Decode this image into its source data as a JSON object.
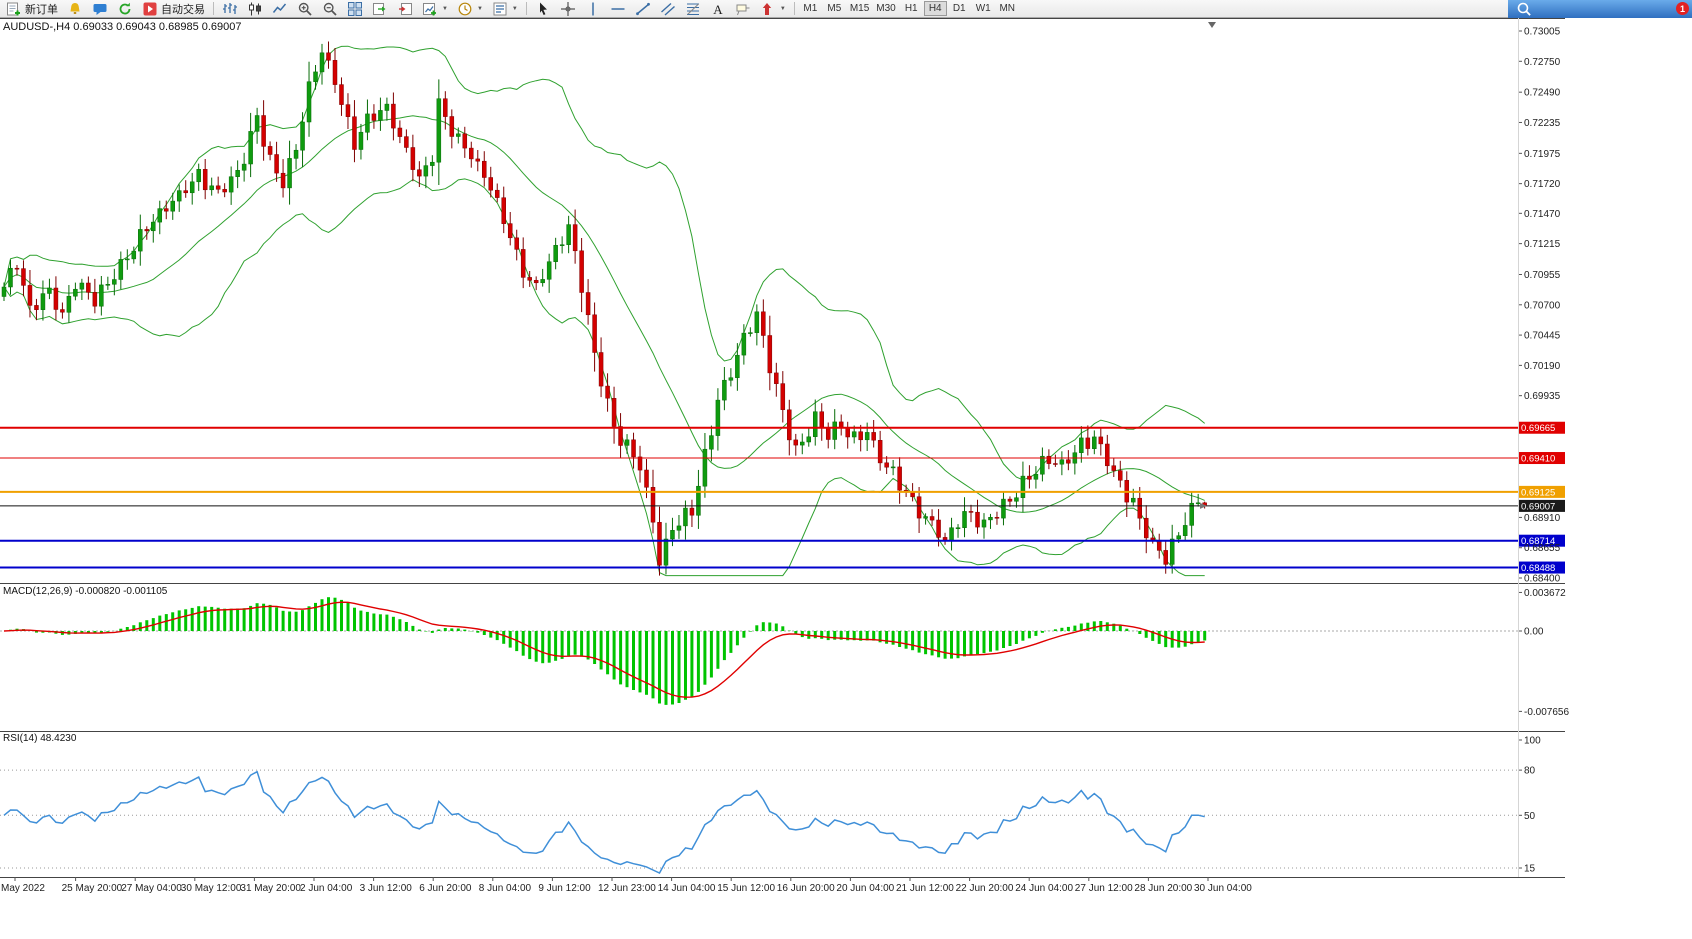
{
  "toolbar": {
    "new_order_label": "新订单",
    "auto_trading_label": "自动交易",
    "left_icons": [
      {
        "name": "bell-icon"
      },
      {
        "name": "chat-icon"
      },
      {
        "name": "refresh-icon"
      }
    ],
    "chart_icons": [
      {
        "name": "bars-chart-icon"
      },
      {
        "name": "candles-chart-icon"
      },
      {
        "name": "line-chart-icon"
      },
      {
        "name": "zoom-in-icon"
      },
      {
        "name": "zoom-out-icon"
      },
      {
        "name": "tile-windows-icon"
      },
      {
        "name": "auto-scroll-icon"
      },
      {
        "name": "chart-shift-icon"
      },
      {
        "name": "new-chart-icon",
        "dropdown": true
      },
      {
        "name": "profiles-icon",
        "dropdown": true
      },
      {
        "name": "templates-icon",
        "dropdown": true
      }
    ],
    "draw_icons": [
      {
        "name": "cursor-icon"
      },
      {
        "name": "crosshair-icon"
      },
      {
        "name": "vertical-line-icon"
      },
      {
        "name": "horizontal-line-icon"
      },
      {
        "name": "trendline-icon"
      },
      {
        "name": "equidistant-channel-icon"
      },
      {
        "name": "fibonacci-icon"
      },
      {
        "name": "text-icon"
      },
      {
        "name": "text-label-icon"
      },
      {
        "name": "arrow-tools-icon",
        "dropdown": true
      }
    ],
    "timeframes": [
      "M1",
      "M5",
      "M15",
      "M30",
      "H1",
      "H4",
      "D1",
      "W1",
      "MN"
    ],
    "active_timeframe": "H4",
    "notification_badge": "1"
  },
  "chart": {
    "title_symbol": "AUDUSD-,H4",
    "title_ohlc": "0.69033 0.69043 0.68985 0.69007",
    "price_axis_labels": [
      "0.73005",
      "0.72750",
      "0.72490",
      "0.72235",
      "0.71975",
      "0.71720",
      "0.71470",
      "0.71215",
      "0.70955",
      "0.70700",
      "0.70445",
      "0.70190",
      "0.69935",
      "0.68910",
      "0.68655",
      "0.68400"
    ],
    "levels": [
      {
        "price": 0.69665,
        "label": "0.69665",
        "color": "#e00000",
        "width": 2
      },
      {
        "price": 0.6941,
        "label": "0.69410",
        "color": "#e00000",
        "width": 1
      },
      {
        "price": 0.69125,
        "label": "0.69125",
        "color": "#f0a000",
        "width": 2
      },
      {
        "price": 0.68714,
        "label": "0.68714",
        "color": "#0000cc",
        "width": 2
      },
      {
        "price": 0.68488,
        "label": "0.68488",
        "color": "#0000cc",
        "width": 2
      }
    ],
    "bid": {
      "price": 0.69007,
      "label": "0.69007",
      "color": "#111111"
    }
  },
  "indicators": {
    "macd": {
      "label": "MACD(12,26,9)",
      "values": "-0.000820 -0.001105",
      "axis_labels": [
        {
          "value": 0.003672,
          "label": "0.003672"
        },
        {
          "value": 0,
          "label": "0.00"
        },
        {
          "value": -0.007656,
          "label": "-0.007656"
        }
      ]
    },
    "rsi": {
      "label": "RSI(14)",
      "value": "48.4230",
      "axis_labels": [
        {
          "value": 100,
          "label": "100"
        },
        {
          "value": 80,
          "label": "80"
        },
        {
          "value": 50,
          "label": "50"
        },
        {
          "value": 15,
          "label": "15"
        }
      ],
      "level_lines": [
        80,
        50,
        15
      ]
    }
  },
  "time_axis": [
    "May 2022",
    "25 May 20:00",
    "27 May 04:00",
    "30 May 12:00",
    "31 May 20:00",
    "2 Jun 04:00",
    "3 Jun 12:00",
    "6 Jun 20:00",
    "8 Jun 04:00",
    "9 Jun 12:00",
    "12 Jun 23:00",
    "14 Jun 04:00",
    "15 Jun 12:00",
    "16 Jun 20:00",
    "20 Jun 04:00",
    "21 Jun 12:00",
    "22 Jun 20:00",
    "24 Jun 04:00",
    "27 Jun 12:00",
    "28 Jun 20:00",
    "30 Jun 04:00"
  ],
  "chart_data": {
    "type": "candlestick",
    "symbol": "AUDUSD",
    "period": "H4",
    "bars": 186,
    "price_range": [
      0.684,
      0.73005
    ],
    "last_ohlc": {
      "open": 0.69033,
      "high": 0.69043,
      "low": 0.68985,
      "close": 0.69007
    },
    "close_waypoints": [
      [
        0,
        0.7085
      ],
      [
        2,
        0.7104
      ],
      [
        4,
        0.7066
      ],
      [
        7,
        0.7082
      ],
      [
        9,
        0.706
      ],
      [
        11,
        0.709
      ],
      [
        14,
        0.7075
      ],
      [
        18,
        0.7102
      ],
      [
        22,
        0.7136
      ],
      [
        26,
        0.7158
      ],
      [
        30,
        0.7178
      ],
      [
        33,
        0.7164
      ],
      [
        36,
        0.718
      ],
      [
        39,
        0.7228
      ],
      [
        41,
        0.719
      ],
      [
        43,
        0.7172
      ],
      [
        45,
        0.7202
      ],
      [
        47,
        0.7252
      ],
      [
        49,
        0.7284
      ],
      [
        51,
        0.7258
      ],
      [
        54,
        0.7205
      ],
      [
        56,
        0.7226
      ],
      [
        59,
        0.7236
      ],
      [
        61,
        0.721
      ],
      [
        64,
        0.7176
      ],
      [
        66,
        0.7196
      ],
      [
        67,
        0.724
      ],
      [
        69,
        0.7216
      ],
      [
        72,
        0.7196
      ],
      [
        75,
        0.717
      ],
      [
        78,
        0.7128
      ],
      [
        80,
        0.7098
      ],
      [
        82,
        0.7085
      ],
      [
        84,
        0.7106
      ],
      [
        87,
        0.7136
      ],
      [
        89,
        0.7088
      ],
      [
        91,
        0.7028
      ],
      [
        94,
        0.6966
      ],
      [
        96,
        0.695
      ],
      [
        98,
        0.6934
      ],
      [
        100,
        0.6888
      ],
      [
        101,
        0.6856
      ],
      [
        103,
        0.6882
      ],
      [
        106,
        0.6896
      ],
      [
        108,
        0.6942
      ],
      [
        110,
        0.699
      ],
      [
        112,
        0.7012
      ],
      [
        114,
        0.7042
      ],
      [
        116,
        0.7062
      ],
      [
        118,
        0.7018
      ],
      [
        120,
        0.698
      ],
      [
        122,
        0.6946
      ],
      [
        124,
        0.6962
      ],
      [
        125,
        0.6974
      ],
      [
        127,
        0.696
      ],
      [
        129,
        0.6968
      ],
      [
        131,
        0.6956
      ],
      [
        133,
        0.6964
      ],
      [
        134,
        0.695
      ],
      [
        136,
        0.6934
      ],
      [
        138,
        0.692
      ],
      [
        140,
        0.6904
      ],
      [
        142,
        0.689
      ],
      [
        144,
        0.6878
      ],
      [
        145,
        0.6868
      ],
      [
        147,
        0.689
      ],
      [
        149,
        0.6894
      ],
      [
        151,
        0.6886
      ],
      [
        153,
        0.6896
      ],
      [
        155,
        0.6906
      ],
      [
        157,
        0.692
      ],
      [
        159,
        0.693
      ],
      [
        161,
        0.694
      ],
      [
        163,
        0.6934
      ],
      [
        165,
        0.6946
      ],
      [
        166,
        0.6952
      ],
      [
        168,
        0.6958
      ],
      [
        170,
        0.6938
      ],
      [
        172,
        0.6918
      ],
      [
        174,
        0.6904
      ],
      [
        175,
        0.6888
      ],
      [
        177,
        0.6868
      ],
      [
        179,
        0.6856
      ],
      [
        181,
        0.6876
      ],
      [
        183,
        0.6903
      ],
      [
        185,
        0.69007
      ]
    ],
    "overlays": [
      {
        "name": "Bollinger Bands",
        "period": 20,
        "deviation": 2,
        "color": "#2fa12f"
      }
    ],
    "panels": [
      {
        "name": "MACD",
        "fast": 12,
        "slow": 26,
        "signal": 9,
        "histogram_color": "#00c400",
        "signal_color": "#e00000"
      },
      {
        "name": "RSI",
        "period": 14,
        "color": "#3f8fd8"
      }
    ]
  }
}
